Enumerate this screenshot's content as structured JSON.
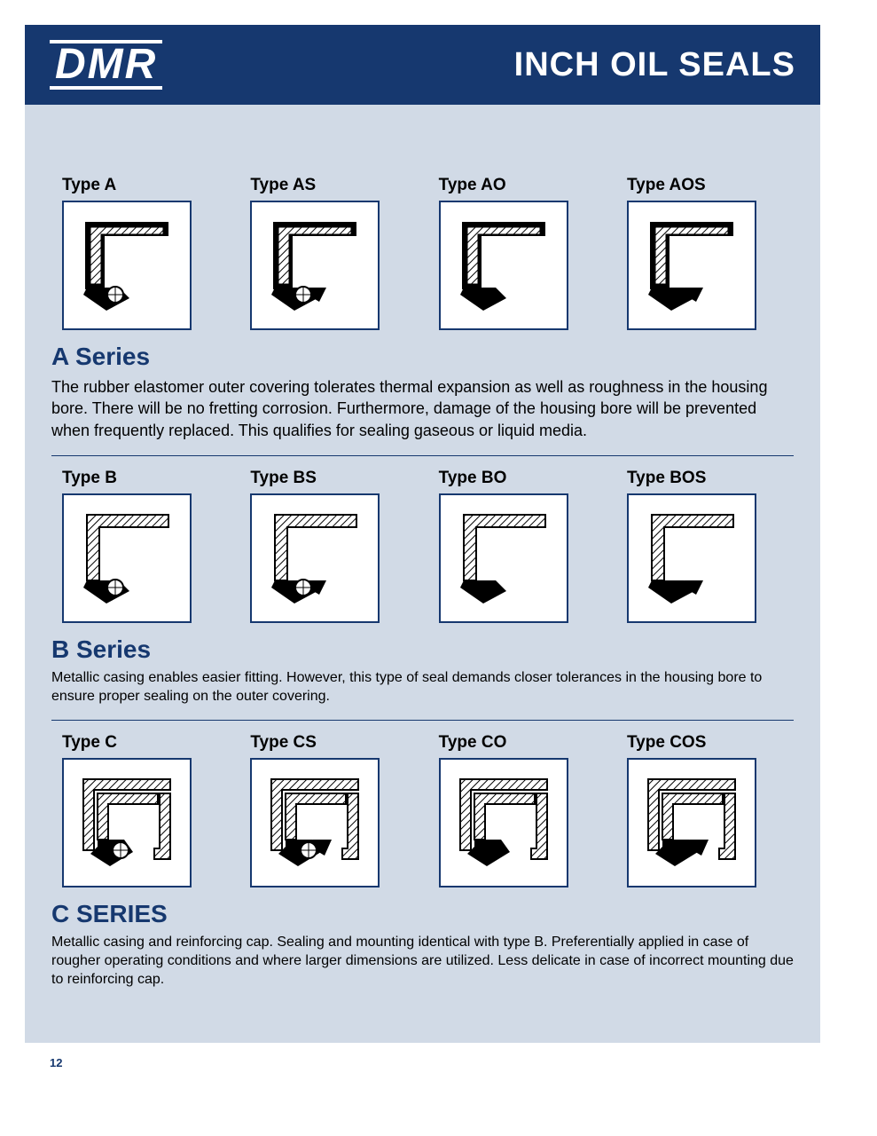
{
  "brand": "DMR",
  "header_title": "INCH OIL SEALS",
  "page_number": "12",
  "colors": {
    "band": "#16386f",
    "page_bg": "#d1dae6",
    "box_border": "#16386f",
    "box_bg": "#ffffff",
    "title": "#16386f",
    "text": "#000000"
  },
  "series": [
    {
      "key": "a",
      "title": "A Series",
      "desc_class": "series-desc",
      "description": "The rubber elastomer outer covering tolerates thermal expansion as well as roughness in the housing bore. There will be no fretting corrosion. Furthermore, damage of the housing bore will be prevented when frequently replaced. This qualifies for sealing gaseous or liquid media.",
      "types": [
        {
          "label": "Type A",
          "outer": "hatched",
          "spring": true,
          "dust": false
        },
        {
          "label": "Type AS",
          "outer": "hatched",
          "spring": true,
          "dust": true
        },
        {
          "label": "Type AO",
          "outer": "hatched",
          "spring": false,
          "dust": false
        },
        {
          "label": "Type AOS",
          "outer": "hatched",
          "spring": false,
          "dust": true
        }
      ]
    },
    {
      "key": "b",
      "title": "B Series",
      "desc_class": "series-desc small",
      "description": "Metallic casing enables easier fitting. However, this type of seal demands closer tolerances in the housing bore to ensure proper sealing on the outer covering.",
      "types": [
        {
          "label": "Type B",
          "outer": "metal-single",
          "spring": true,
          "dust": false
        },
        {
          "label": "Type BS",
          "outer": "metal-single",
          "spring": true,
          "dust": true
        },
        {
          "label": "Type BO",
          "outer": "metal-single",
          "spring": false,
          "dust": false
        },
        {
          "label": "Type BOS",
          "outer": "metal-single",
          "spring": false,
          "dust": true
        }
      ]
    },
    {
      "key": "c",
      "title": "C SERIES",
      "desc_class": "series-desc small",
      "description": "Metallic casing and reinforcing cap. Sealing and mounting identical with type B. Preferentially applied in case of rougher operating conditions and where larger dimensions are utilized. Less delicate in case of incorrect mounting due to reinforcing cap.",
      "types": [
        {
          "label": "Type C",
          "outer": "metal-double",
          "spring": true,
          "dust": false
        },
        {
          "label": "Type CS",
          "outer": "metal-double",
          "spring": true,
          "dust": true
        },
        {
          "label": "Type CO",
          "outer": "metal-double",
          "spring": false,
          "dust": false
        },
        {
          "label": "Type COS",
          "outer": "metal-double",
          "spring": false,
          "dust": true
        }
      ]
    }
  ]
}
